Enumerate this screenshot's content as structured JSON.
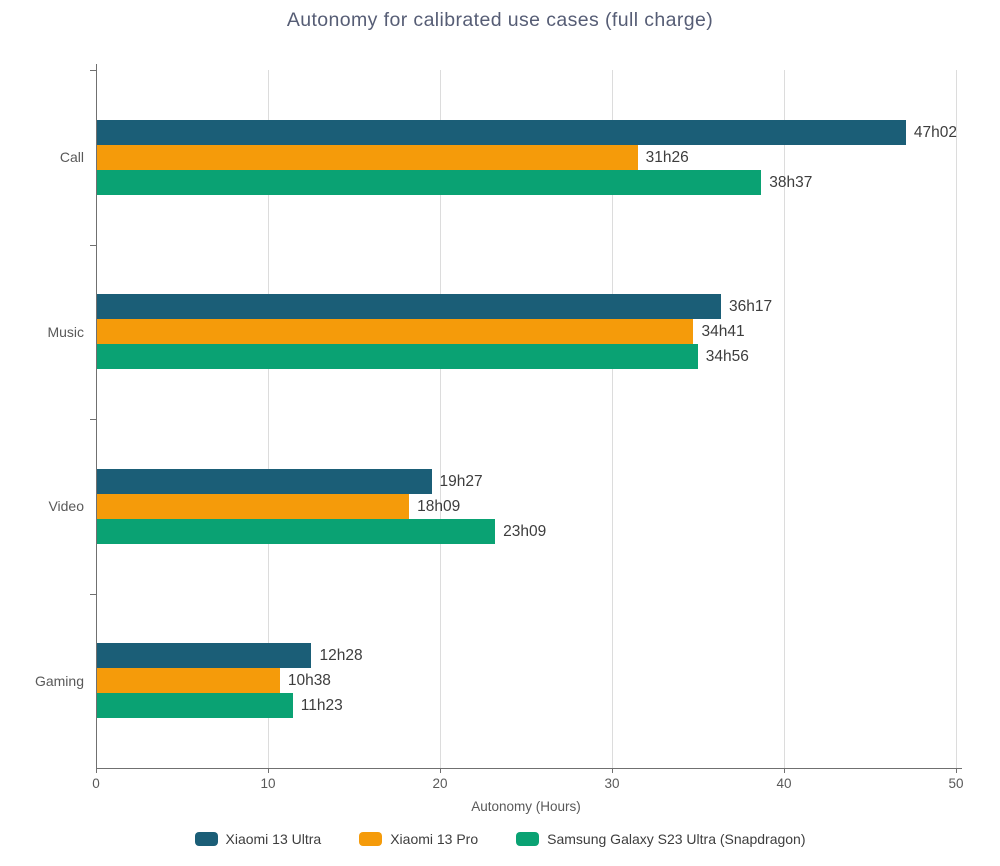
{
  "title": "Autonomy for calibrated use cases (full charge)",
  "chart_data": {
    "type": "bar",
    "orientation": "horizontal",
    "title": "Autonomy for calibrated use cases (full charge)",
    "xlabel": "Autonomy (Hours)",
    "ylabel": "",
    "xlim": [
      0,
      50
    ],
    "xticks": [
      0,
      10,
      20,
      30,
      40,
      50
    ],
    "grid": true,
    "legend_position": "bottom",
    "categories": [
      "Call",
      "Music",
      "Video",
      "Gaming"
    ],
    "series": [
      {
        "name": "Xiaomi 13 Ultra",
        "color": "#1b5e77",
        "value_labels": [
          "47h02",
          "36h17",
          "19h27",
          "12h28"
        ],
        "values": [
          47.03,
          36.28,
          19.45,
          12.47
        ]
      },
      {
        "name": "Xiaomi 13 Pro",
        "color": "#f59b0a",
        "value_labels": [
          "31h26",
          "34h41",
          "18h09",
          "10h38"
        ],
        "values": [
          31.43,
          34.68,
          18.15,
          10.63
        ]
      },
      {
        "name": "Samsung Galaxy S23 Ultra (Snapdragon)",
        "color": "#0aa273",
        "value_labels": [
          "38h37",
          "34h56",
          "23h09",
          "11h23"
        ],
        "values": [
          38.62,
          34.93,
          23.15,
          11.38
        ]
      }
    ]
  },
  "colors": {
    "title": "#565d75",
    "axis": "#707070",
    "grid": "#dcdcdc",
    "tick_label": "#595959",
    "category_label": "#595959",
    "value_label": "#3d3d3d",
    "legend_text": "#3d3d3d",
    "background": "#ffffff"
  }
}
